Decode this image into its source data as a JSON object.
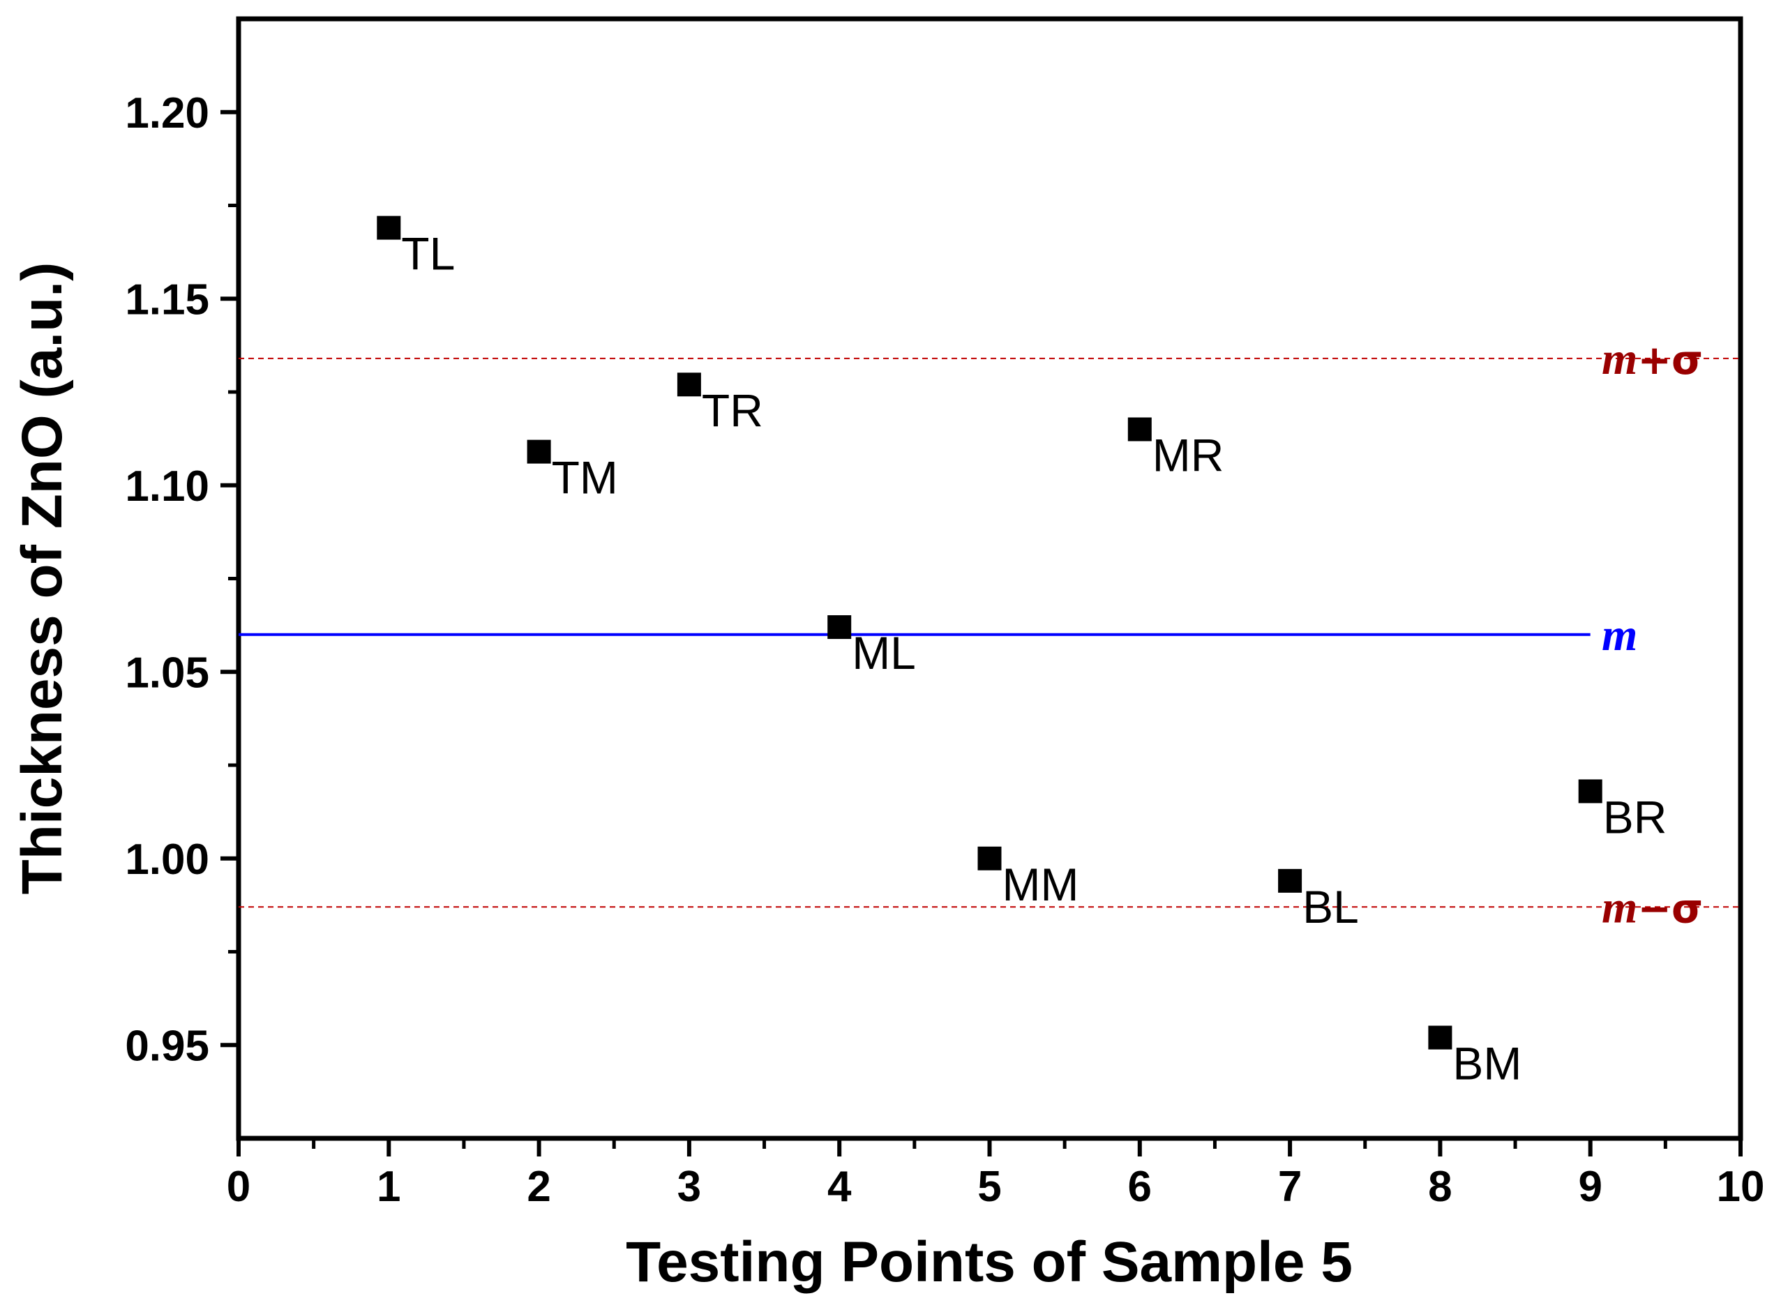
{
  "chart_data": {
    "type": "scatter",
    "title": "",
    "xlabel": "Testing Points of Sample 5",
    "ylabel": "Thickness of ZnO (a.u.)",
    "xlim": [
      0,
      10
    ],
    "ylim": [
      0.925,
      1.225
    ],
    "grid": false,
    "x_ticks": [
      0,
      1,
      2,
      3,
      4,
      5,
      6,
      7,
      8,
      9,
      10
    ],
    "x_tick_labels": [
      "0",
      "1",
      "2",
      "3",
      "4",
      "5",
      "6",
      "7",
      "8",
      "9",
      "10"
    ],
    "y_ticks": [
      0.95,
      1.0,
      1.05,
      1.1,
      1.15,
      1.2
    ],
    "y_tick_labels": [
      "0.95",
      "1.00",
      "1.05",
      "1.10",
      "1.15",
      "1.20"
    ],
    "x_minor_step": 0.5,
    "y_minor_step": 0.025,
    "series": [
      {
        "name": "Thickness",
        "marker": "square",
        "color": "#000000",
        "points": [
          {
            "x": 1,
            "y": 1.169,
            "label": "TL"
          },
          {
            "x": 2,
            "y": 1.109,
            "label": "TM"
          },
          {
            "x": 3,
            "y": 1.127,
            "label": "TR"
          },
          {
            "x": 4,
            "y": 1.062,
            "label": "ML"
          },
          {
            "x": 5,
            "y": 1.0,
            "label": "MM"
          },
          {
            "x": 6,
            "y": 1.115,
            "label": "MR"
          },
          {
            "x": 7,
            "y": 0.994,
            "label": "BL"
          },
          {
            "x": 8,
            "y": 0.952,
            "label": "BM"
          },
          {
            "x": 9,
            "y": 1.018,
            "label": "BR"
          }
        ]
      }
    ],
    "reference_lines": [
      {
        "name": "mean",
        "y": 1.06,
        "x_end": 9,
        "style": "solid",
        "color": "#0000ff",
        "label_parts": [
          "m"
        ]
      },
      {
        "name": "mean-plus-sigma",
        "y": 1.134,
        "x_end": 10,
        "style": "dashed",
        "color": "#c00000",
        "label_color": "#990000",
        "label_parts": [
          "m",
          "+",
          "σ"
        ]
      },
      {
        "name": "mean-minus-sigma",
        "y": 0.987,
        "x_end": 10,
        "style": "dashed",
        "color": "#c00000",
        "label_color": "#990000",
        "label_parts": [
          "m",
          "−",
          "σ"
        ]
      }
    ]
  }
}
